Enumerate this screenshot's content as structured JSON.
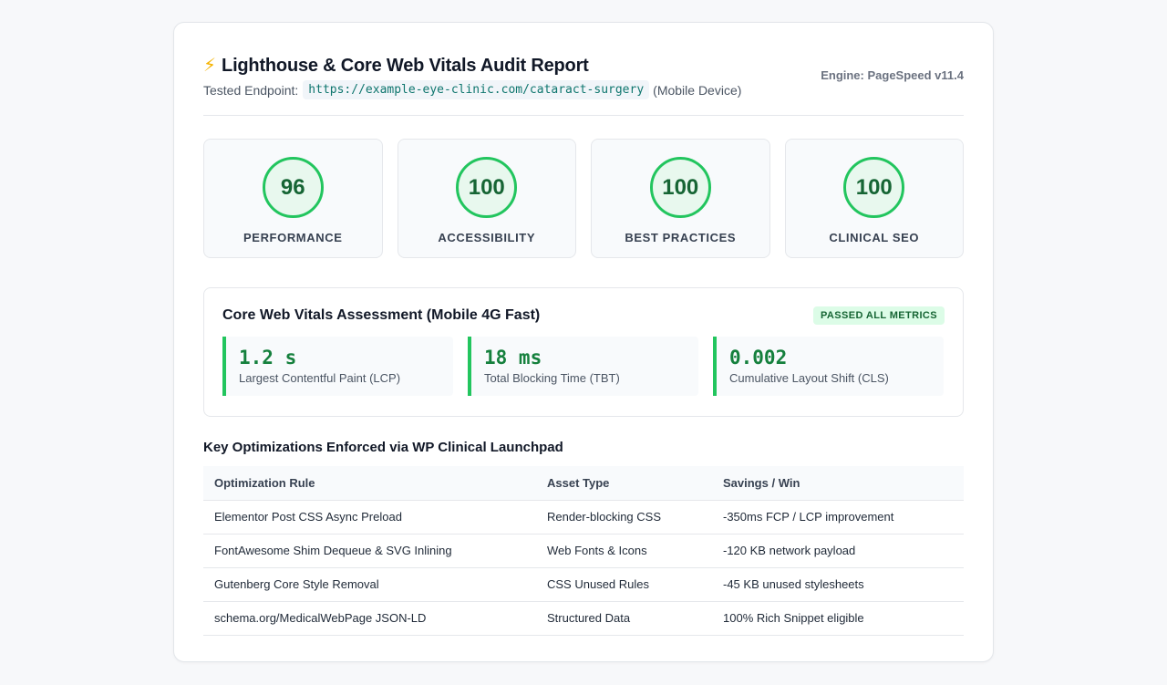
{
  "header": {
    "title": "Lighthouse & Core Web Vitals Audit Report",
    "endpoint_label": "Tested Endpoint:",
    "endpoint_url": "https://example-eye-clinic.com/cataract-surgery",
    "device": "(Mobile Device)",
    "engine": "Engine: PageSpeed v11.4"
  },
  "scores": [
    {
      "value": "96",
      "label": "PERFORMANCE"
    },
    {
      "value": "100",
      "label": "ACCESSIBILITY"
    },
    {
      "value": "100",
      "label": "BEST PRACTICES"
    },
    {
      "value": "100",
      "label": "CLINICAL SEO"
    }
  ],
  "cwv": {
    "title": "Core Web Vitals Assessment (Mobile 4G Fast)",
    "badge": "PASSED ALL METRICS",
    "metrics": [
      {
        "value": "1.2 s",
        "label": "Largest Contentful Paint (LCP)"
      },
      {
        "value": "18 ms",
        "label": "Total Blocking Time (TBT)"
      },
      {
        "value": "0.002",
        "label": "Cumulative Layout Shift (CLS)"
      }
    ]
  },
  "optimizations": {
    "title": "Key Optimizations Enforced via WP Clinical Launchpad",
    "columns": [
      "Optimization Rule",
      "Asset Type",
      "Savings / Win"
    ],
    "rows": [
      [
        "Elementor Post CSS Async Preload",
        "Render-blocking CSS",
        "-350ms FCP / LCP improvement"
      ],
      [
        "FontAwesome Shim Dequeue & SVG Inlining",
        "Web Fonts & Icons",
        "-120 KB network payload"
      ],
      [
        "Gutenberg Core Style Removal",
        "CSS Unused Rules",
        "-45 KB unused stylesheets"
      ],
      [
        "schema.org/MedicalWebPage JSON-LD",
        "Structured Data",
        "100% Rich Snippet eligible"
      ]
    ]
  },
  "colors": {
    "accent_green": "#22c55e",
    "score_text": "#166534",
    "url_color": "#0f766e"
  }
}
